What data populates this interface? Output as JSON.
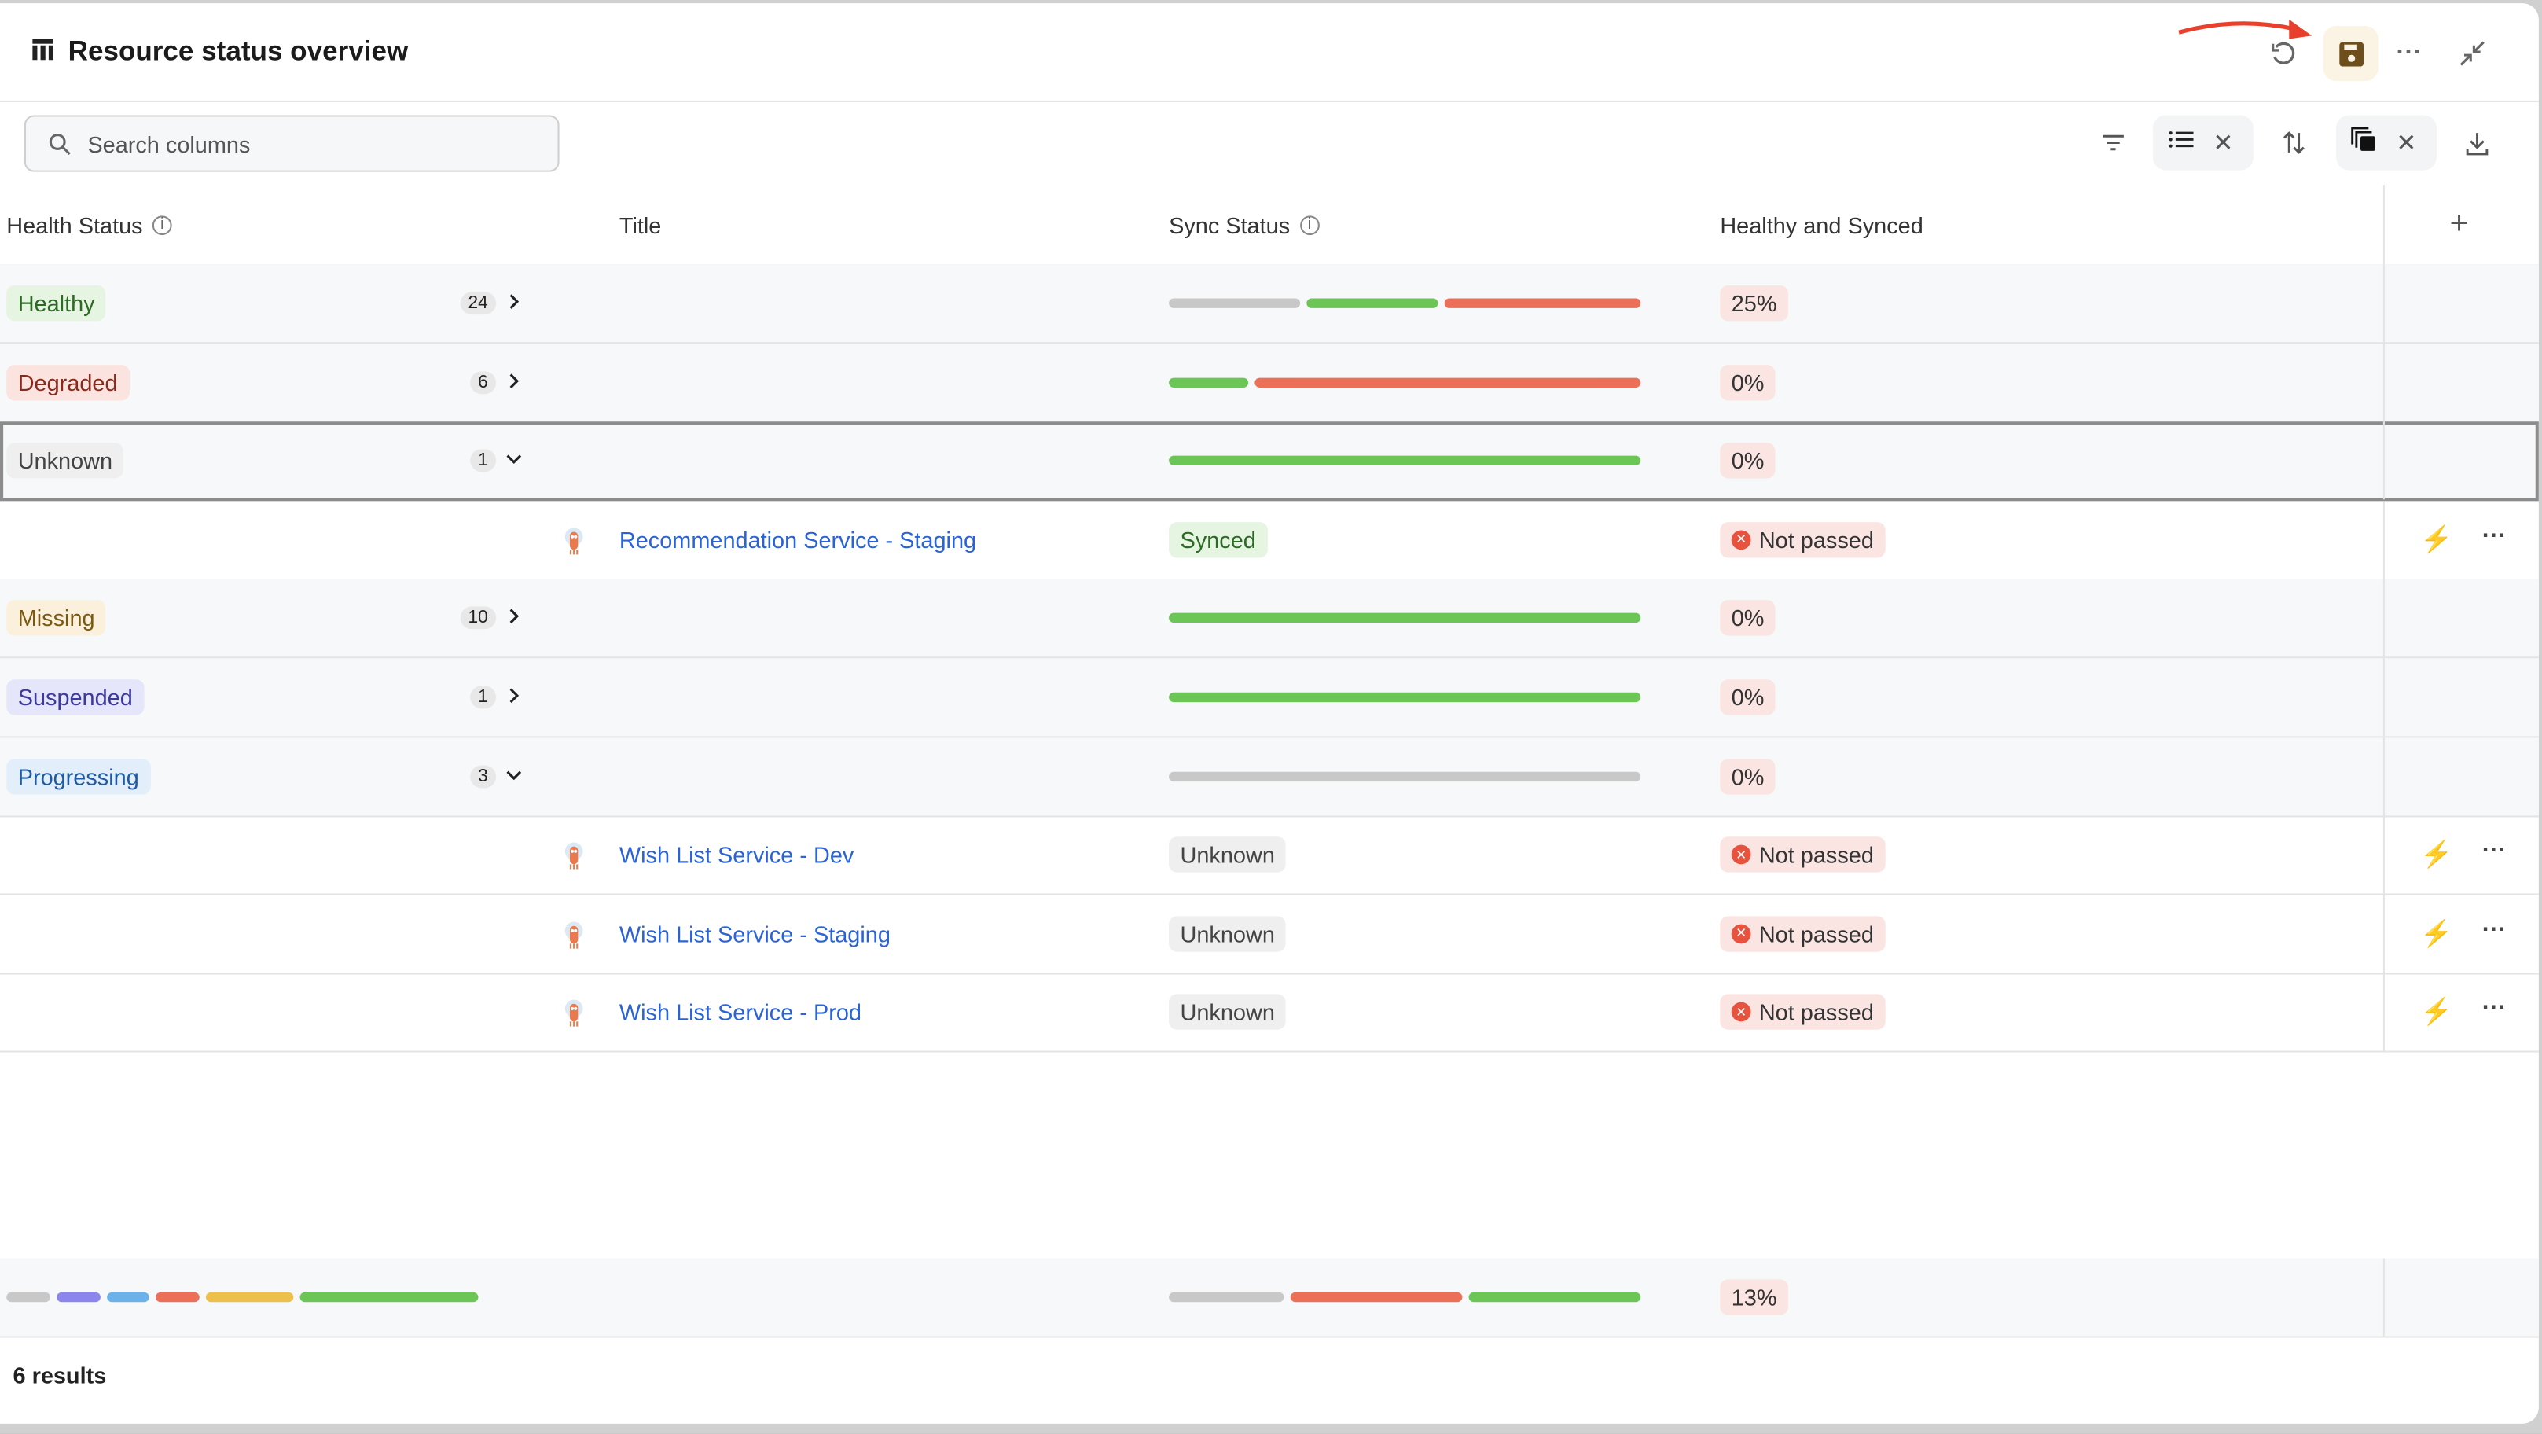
{
  "header": {
    "title": "Resource status overview",
    "icons": [
      "table-icon",
      "undo-icon",
      "save-icon",
      "more-icon",
      "collapse-icon"
    ]
  },
  "toolbar": {
    "search_placeholder": "Search columns"
  },
  "columns": [
    "Health Status",
    "Title",
    "Sync Status",
    "Healthy and Synced"
  ],
  "colors": {
    "gray": "#c8c8c8",
    "green": "#6cc655",
    "red": "#ec7058",
    "purple": "#8c86ec",
    "blue": "#6bb2ea",
    "yellow": "#ecc04a",
    "link": "#2a63d6"
  },
  "rows": [
    {
      "type": "group",
      "status": "Healthy",
      "count": "24",
      "expanded": false,
      "bg": "#e6f4e2",
      "fg": "#2c6a25",
      "bar": [
        [
          "gray",
          28
        ],
        [
          "green",
          28
        ],
        [
          "red",
          42
        ]
      ],
      "pct": "25%"
    },
    {
      "type": "group",
      "status": "Degraded",
      "count": "6",
      "expanded": false,
      "bg": "#fbe3df",
      "fg": "#8a2a1c",
      "bar": [
        [
          "green",
          17
        ],
        [
          "red",
          83
        ]
      ],
      "pct": "0%"
    },
    {
      "type": "group",
      "status": "Unknown",
      "count": "1",
      "expanded": true,
      "selected": true,
      "bg": "#efefef",
      "fg": "#444",
      "bar": [
        [
          "green",
          100
        ]
      ],
      "pct": "0%"
    },
    {
      "type": "item",
      "title": "Recommendation Service - Staging",
      "sync": "Synced",
      "sync_bg": "#e6f4e2",
      "sync_fg": "#2c6a25",
      "check": "Not passed"
    },
    {
      "type": "group",
      "status": "Missing",
      "count": "10",
      "expanded": false,
      "bg": "#fbf0dc",
      "fg": "#7a5a12",
      "bar": [
        [
          "green",
          100
        ]
      ],
      "pct": "0%"
    },
    {
      "type": "group",
      "status": "Suspended",
      "count": "1",
      "expanded": false,
      "bg": "#e6e6fb",
      "fg": "#3d3a9e",
      "bar": [
        [
          "green",
          100
        ]
      ],
      "pct": "0%"
    },
    {
      "type": "group",
      "status": "Progressing",
      "count": "3",
      "expanded": true,
      "bg": "#e2effb",
      "fg": "#1f5aa3",
      "bar": [
        [
          "gray",
          100
        ]
      ],
      "pct": "0%"
    },
    {
      "type": "item",
      "title": "Wish List Service - Dev",
      "sync": "Unknown",
      "sync_bg": "#efefef",
      "sync_fg": "#444",
      "check": "Not passed"
    },
    {
      "type": "item",
      "title": "Wish List Service - Staging",
      "sync": "Unknown",
      "sync_bg": "#efefef",
      "sync_fg": "#444",
      "check": "Not passed"
    },
    {
      "type": "item",
      "title": "Wish List Service - Prod",
      "sync": "Unknown",
      "sync_bg": "#efefef",
      "sync_fg": "#444",
      "check": "Not passed"
    }
  ],
  "summary": {
    "health_bar": [
      [
        "gray",
        9
      ],
      [
        "purple",
        9
      ],
      [
        "blue",
        9
      ],
      [
        "red",
        9
      ],
      [
        "yellow",
        18
      ],
      [
        "green",
        37
      ]
    ],
    "sync_bar": [
      [
        "gray",
        25
      ],
      [
        "red",
        37
      ],
      [
        "green",
        37
      ]
    ],
    "pct": "13%"
  },
  "footer": {
    "results": "6 results"
  }
}
